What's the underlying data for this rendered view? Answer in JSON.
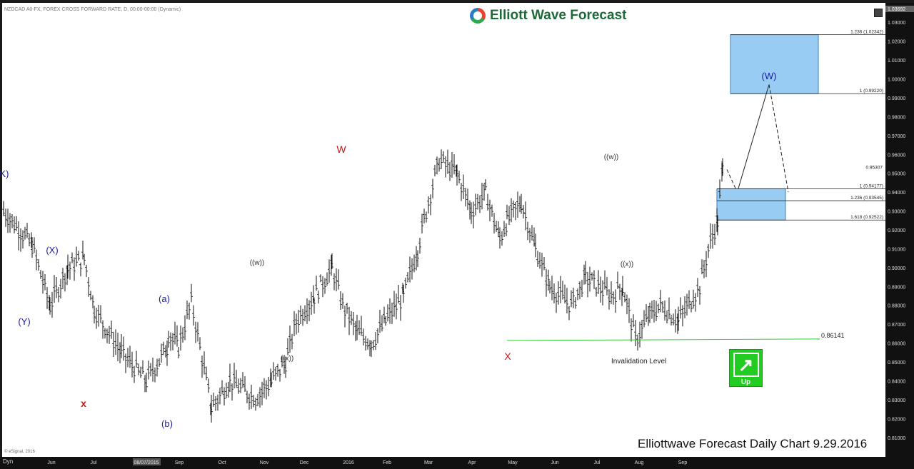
{
  "header": {
    "symbol_line": "NZDCAD A0-FX, FOREX CROSS FORWARD RATE, D, 00:00-00:00 (Dynamic)",
    "brand": "Elliott Wave Forecast"
  },
  "footer": {
    "caption": "Elliottwave Forecast Daily Chart 9.29.2016",
    "copyright": "© eSignal, 2016",
    "range_button": "Dyn",
    "range_date": "08/07/2015"
  },
  "badge": {
    "label": "Up",
    "color": "#22cc22"
  },
  "chart_data": {
    "type": "ohlc",
    "instrument": "NZDCAD",
    "ylim": [
      0.805,
      1.0369
    ],
    "y_ticks": [
      "1.03000",
      "1.02000",
      "1.01000",
      "1.00000",
      "0.99000",
      "0.98000",
      "0.97000",
      "0.96000",
      "0.95000",
      "0.94000",
      "0.93000",
      "0.92000",
      "0.91000",
      "0.90000",
      "0.89000",
      "0.88000",
      "0.87000",
      "0.86000",
      "0.85000",
      "0.84000",
      "0.83000",
      "0.82000",
      "0.81000"
    ],
    "x_ticks": [
      "Jun",
      "Jul",
      "Sep",
      "Oct",
      "Nov",
      "Dec",
      "2016",
      "Feb",
      "Mar",
      "Apr",
      "May",
      "Jun",
      "Jul",
      "Aug",
      "Sep"
    ],
    "last_price": "0.95307",
    "top_price": "1.03692",
    "series_points": [
      [
        "May 2015",
        0.93
      ],
      [
        "May 2015",
        0.912
      ],
      [
        "Jun 2015",
        0.88
      ],
      [
        "Jun 2015",
        0.9
      ],
      [
        "Jun 2015",
        0.905
      ],
      [
        "Jun 2015",
        0.878
      ],
      [
        "Jul 2015",
        0.855
      ],
      [
        "Jul 2015",
        0.84
      ],
      [
        "Jul 2015",
        0.858
      ],
      [
        "Aug 2015",
        0.865
      ],
      [
        "Aug 2015",
        0.858
      ],
      [
        "Aug 2015",
        0.882
      ],
      [
        "Aug 2015",
        0.826
      ],
      [
        "Sep 2015",
        0.84
      ],
      [
        "Sep 2015",
        0.831
      ],
      [
        "Sep 2015",
        0.84
      ],
      [
        "Oct 2015",
        0.85
      ],
      [
        "Oct 2015",
        0.872
      ],
      [
        "Oct 2015",
        0.885
      ],
      [
        "Oct 2015",
        0.9
      ],
      [
        "Nov 2015",
        0.88
      ],
      [
        "Nov 2015",
        0.866
      ],
      [
        "Nov 2015",
        0.86
      ],
      [
        "Nov 2015",
        0.872
      ],
      [
        "Dec 2015",
        0.885
      ],
      [
        "Dec 2015",
        0.91
      ],
      [
        "Dec 2015",
        0.935
      ],
      [
        "Dec 2015",
        0.957
      ],
      [
        "Jan 2016",
        0.95
      ],
      [
        "Jan 2016",
        0.93
      ],
      [
        "Jan 2016",
        0.94
      ],
      [
        "Feb 2016",
        0.915
      ],
      [
        "Feb 2016",
        0.925
      ],
      [
        "Feb 2016",
        0.935
      ],
      [
        "Mar 2016",
        0.91
      ],
      [
        "Mar 2016",
        0.89
      ],
      [
        "Mar 2016",
        0.88
      ],
      [
        "Apr 2016",
        0.895
      ],
      [
        "Apr 2016",
        0.885
      ],
      [
        "Apr 2016",
        0.89
      ],
      [
        "May 2016",
        0.862
      ],
      [
        "May 2016",
        0.875
      ],
      [
        "May 2016",
        0.88
      ],
      [
        "Jun 2016",
        0.872
      ],
      [
        "Jun 2016",
        0.89
      ],
      [
        "Jun 2016",
        0.91
      ],
      [
        "Jul 2016",
        0.925
      ],
      [
        "Jul 2016",
        0.953
      ],
      [
        "Jul 2016",
        0.908
      ],
      [
        "Aug 2016",
        0.93
      ],
      [
        "Aug 2016",
        0.94
      ],
      [
        "Aug 2016",
        0.93
      ],
      [
        "Sep 2016",
        0.945
      ],
      [
        "Sep 2016",
        0.962
      ],
      [
        "Sep 2016",
        0.972
      ],
      [
        "Sep 2016",
        0.95307
      ]
    ],
    "wave_labels": [
      {
        "text": "(X)",
        "color": "#1a1aa0",
        "x": "May 2015",
        "y": 0.905,
        "pos": "above"
      },
      {
        "text": "(Y)",
        "color": "#1a1aa0",
        "x": "May 2015",
        "y": 0.879,
        "pos": "below"
      },
      {
        "text": "x",
        "color": "#cc1111",
        "x": "Jul 2015",
        "y": 0.841,
        "pos": "below"
      },
      {
        "text": "(a)",
        "color": "#1a1aa0",
        "x": "Aug 2015",
        "y": 0.882,
        "pos": "above"
      },
      {
        "text": "(b)",
        "color": "#1a1aa0",
        "x": "Aug 2015",
        "y": 0.826,
        "pos": "below"
      },
      {
        "text": "((w))",
        "color": "#333333",
        "x": "Nov 2015",
        "y": 0.9,
        "pos": "above"
      },
      {
        "text": "((x))",
        "color": "#333333",
        "x": "Nov 2015",
        "y": 0.861,
        "pos": "below"
      },
      {
        "text": "W",
        "color": "#cc1111",
        "x": "Dec 2015",
        "y": 0.9575,
        "pos": "above"
      },
      {
        "text": "X",
        "color": "#cc1111",
        "x": "May 2016",
        "y": 0.861,
        "pos": "below"
      },
      {
        "text": "((w))",
        "color": "#333333",
        "x": "Jul 2016",
        "y": 0.955,
        "pos": "above"
      },
      {
        "text": "((x))",
        "color": "#333333",
        "x": "Jul 2016",
        "y": 0.908,
        "pos": "below"
      },
      {
        "text": "(W)",
        "color": "#1a1aa0",
        "x": "Oct 2016",
        "y": 0.997,
        "pos": "above"
      },
      {
        "text": "K)",
        "color": "#1a1aa0",
        "x": "Apr 2015",
        "y": 0.95,
        "pos": "left"
      }
    ],
    "levels": [
      {
        "label": "1.236 (1.02342)",
        "value": 1.02342
      },
      {
        "label": "1 (0.99220)",
        "value": 0.9922
      },
      {
        "label": "1 (0.94177)",
        "value": 0.94177
      },
      {
        "label": "1.236 (0.93545)",
        "value": 0.93545
      },
      {
        "label": "1.618 (0.92522)",
        "value": 0.92522
      }
    ],
    "target_boxes": [
      {
        "top": 1.02342,
        "bottom": 0.9922,
        "color": "#99ccf2"
      },
      {
        "top": 0.94177,
        "bottom": 0.92522,
        "color": "#99ccf2"
      }
    ],
    "invalidation": {
      "label": "Invalidation Level",
      "value_label": "0.86141",
      "value": 0.86141,
      "color": "#33cc33"
    },
    "projection": [
      {
        "x": "Oct 2016",
        "y": 0.942,
        "style": "solid"
      },
      {
        "x": "Oct 2016",
        "y": 0.997,
        "style": "solid"
      },
      {
        "x": "Nov 2016",
        "y": 0.94,
        "style": "dashed"
      }
    ]
  }
}
